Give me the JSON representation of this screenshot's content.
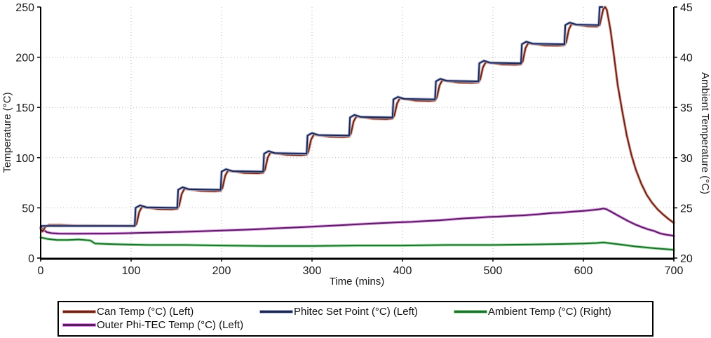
{
  "chart_data": {
    "type": "line",
    "title": "",
    "xlabel": "Time (mins)",
    "ylabel_left": "Temperature (°C)",
    "ylabel_right": "Ambient Temperature (°C)",
    "xlim": [
      0,
      700
    ],
    "ylim_left": [
      0,
      250
    ],
    "ylim_right": [
      20,
      45
    ],
    "x_ticks": [
      0,
      100,
      200,
      300,
      400,
      500,
      600,
      700
    ],
    "y_ticks_left": [
      0,
      50,
      100,
      150,
      200,
      250
    ],
    "y_ticks_right": [
      20,
      25,
      30,
      35,
      40,
      45
    ],
    "grid": true,
    "legend_position": "bottom",
    "legend_order": [
      0,
      1,
      3,
      2
    ],
    "series": [
      {
        "name": "Can Temp (°C) (Left)",
        "axis": "left",
        "color": "#6B2318",
        "halo": "#DFA193",
        "points": [
          [
            0,
            29
          ],
          [
            2,
            26.5
          ],
          [
            5,
            31
          ],
          [
            9,
            33
          ],
          [
            22,
            33
          ],
          [
            40,
            32.3
          ],
          [
            104,
            32
          ],
          [
            106,
            34
          ],
          [
            109,
            46
          ],
          [
            112,
            51
          ],
          [
            118,
            50.3
          ],
          [
            130,
            48.8
          ],
          [
            145,
            48.5
          ],
          [
            151,
            49
          ],
          [
            153,
            52
          ],
          [
            156,
            64
          ],
          [
            159,
            69
          ],
          [
            165,
            68.3
          ],
          [
            177,
            66.8
          ],
          [
            192,
            66.5
          ],
          [
            199,
            67
          ],
          [
            201,
            70
          ],
          [
            204,
            82
          ],
          [
            207,
            87
          ],
          [
            213,
            86.3
          ],
          [
            225,
            84.8
          ],
          [
            240,
            84.5
          ],
          [
            246,
            85
          ],
          [
            248,
            88
          ],
          [
            251,
            100
          ],
          [
            254,
            105
          ],
          [
            260,
            104.3
          ],
          [
            272,
            102.8
          ],
          [
            287,
            102.5
          ],
          [
            294,
            103
          ],
          [
            296,
            106
          ],
          [
            299,
            118
          ],
          [
            302,
            123
          ],
          [
            308,
            122.3
          ],
          [
            320,
            120.8
          ],
          [
            335,
            120.5
          ],
          [
            341,
            121
          ],
          [
            343,
            124
          ],
          [
            346,
            136
          ],
          [
            349,
            141
          ],
          [
            355,
            140.3
          ],
          [
            367,
            138.8
          ],
          [
            382,
            138.5
          ],
          [
            389,
            139
          ],
          [
            391,
            142
          ],
          [
            394,
            154
          ],
          [
            397,
            159
          ],
          [
            403,
            158.3
          ],
          [
            415,
            156.8
          ],
          [
            430,
            156.5
          ],
          [
            436,
            157
          ],
          [
            438,
            160
          ],
          [
            441,
            172
          ],
          [
            444,
            177
          ],
          [
            450,
            176.3
          ],
          [
            462,
            174.8
          ],
          [
            477,
            174.5
          ],
          [
            484,
            175
          ],
          [
            486,
            178
          ],
          [
            489,
            190
          ],
          [
            492,
            195
          ],
          [
            498,
            194.3
          ],
          [
            510,
            192.8
          ],
          [
            525,
            192.5
          ],
          [
            531,
            193
          ],
          [
            533,
            196
          ],
          [
            536,
            209
          ],
          [
            539,
            214
          ],
          [
            545,
            213.3
          ],
          [
            557,
            211.8
          ],
          [
            572,
            211.5
          ],
          [
            579,
            212
          ],
          [
            581,
            215
          ],
          [
            584,
            228
          ],
          [
            587,
            233
          ],
          [
            593,
            232.3
          ],
          [
            605,
            230.8
          ],
          [
            615,
            230.5
          ],
          [
            618,
            232
          ],
          [
            620,
            240
          ],
          [
            622,
            248
          ],
          [
            624,
            250
          ],
          [
            626,
            247
          ],
          [
            630,
            227
          ],
          [
            634,
            200
          ],
          [
            638,
            172
          ],
          [
            643,
            146
          ],
          [
            648,
            122
          ],
          [
            653,
            103
          ],
          [
            658,
            88
          ],
          [
            664,
            74
          ],
          [
            670,
            63
          ],
          [
            676,
            55
          ],
          [
            682,
            48.5
          ],
          [
            688,
            43.5
          ],
          [
            694,
            39
          ],
          [
            700,
            35
          ]
        ]
      },
      {
        "name": "Phitec Set Point (°C) (Left)",
        "axis": "left",
        "color": "#1C2750",
        "halo": "#A3ADD6",
        "points": [
          [
            0,
            30
          ],
          [
            1.5,
            32
          ],
          [
            104,
            32
          ],
          [
            105,
            50
          ],
          [
            110,
            52.5
          ],
          [
            117,
            50.5
          ],
          [
            151,
            50
          ],
          [
            152,
            68
          ],
          [
            157,
            70.5
          ],
          [
            164,
            68.5
          ],
          [
            199,
            68
          ],
          [
            200,
            86
          ],
          [
            205,
            88.5
          ],
          [
            212,
            86.5
          ],
          [
            246,
            86
          ],
          [
            247,
            104
          ],
          [
            252,
            106.5
          ],
          [
            259,
            104.5
          ],
          [
            294,
            104
          ],
          [
            295,
            122
          ],
          [
            300,
            124.5
          ],
          [
            307,
            122.5
          ],
          [
            341,
            122
          ],
          [
            342,
            140
          ],
          [
            347,
            142.5
          ],
          [
            354,
            140.5
          ],
          [
            389,
            140
          ],
          [
            390,
            158
          ],
          [
            395,
            160.5
          ],
          [
            402,
            158.5
          ],
          [
            436,
            158
          ],
          [
            437,
            176
          ],
          [
            442,
            178.5
          ],
          [
            449,
            176.5
          ],
          [
            484,
            176
          ],
          [
            485,
            194
          ],
          [
            490,
            196.5
          ],
          [
            497,
            194.5
          ],
          [
            531,
            194
          ],
          [
            532,
            213
          ],
          [
            537,
            215.5
          ],
          [
            544,
            213.5
          ],
          [
            579,
            213
          ],
          [
            580,
            232
          ],
          [
            585,
            234.5
          ],
          [
            592,
            232.5
          ],
          [
            617,
            232
          ],
          [
            618,
            250
          ],
          [
            621,
            250
          ]
        ]
      },
      {
        "name": "Outer Phi-TEC Temp (°C) (Left)",
        "axis": "left",
        "color": "#5B1C64",
        "halo": "#D88FDF",
        "points": [
          [
            0,
            30.5
          ],
          [
            3,
            28
          ],
          [
            7,
            25.8
          ],
          [
            12,
            24.8
          ],
          [
            20,
            24.4
          ],
          [
            40,
            24.3
          ],
          [
            70,
            24.4
          ],
          [
            95,
            24.7
          ],
          [
            105,
            25
          ],
          [
            125,
            25.4
          ],
          [
            150,
            26
          ],
          [
            175,
            26.6
          ],
          [
            200,
            27.4
          ],
          [
            225,
            28.2
          ],
          [
            250,
            29.2
          ],
          [
            275,
            30.2
          ],
          [
            300,
            31.2
          ],
          [
            325,
            32.4
          ],
          [
            350,
            33.6
          ],
          [
            375,
            34.8
          ],
          [
            395,
            35.6
          ],
          [
            410,
            36
          ],
          [
            425,
            36.8
          ],
          [
            440,
            37.6
          ],
          [
            455,
            38.6
          ],
          [
            470,
            39.6
          ],
          [
            480,
            40.1
          ],
          [
            495,
            40.9
          ],
          [
            505,
            41.2
          ],
          [
            520,
            42
          ],
          [
            535,
            42.6
          ],
          [
            550,
            43.6
          ],
          [
            565,
            44.8
          ],
          [
            575,
            45.2
          ],
          [
            590,
            46.4
          ],
          [
            600,
            47
          ],
          [
            612,
            48
          ],
          [
            618,
            48.6
          ],
          [
            622,
            49.4
          ],
          [
            625,
            48.8
          ],
          [
            630,
            46.5
          ],
          [
            636,
            43.5
          ],
          [
            643,
            40
          ],
          [
            650,
            36.6
          ],
          [
            657,
            33.6
          ],
          [
            664,
            31
          ],
          [
            671,
            28.8
          ],
          [
            678,
            27
          ],
          [
            685,
            24.5
          ],
          [
            692,
            23.2
          ],
          [
            700,
            22.2
          ]
        ]
      },
      {
        "name": "Ambient Temp (°C) (Right)",
        "axis": "right",
        "color": "#1F7030",
        "halo": "#93DC98",
        "points": [
          [
            0,
            22.05
          ],
          [
            8,
            21.9
          ],
          [
            18,
            21.8
          ],
          [
            30,
            21.8
          ],
          [
            42,
            21.85
          ],
          [
            55,
            21.75
          ],
          [
            60,
            21.45
          ],
          [
            75,
            21.4
          ],
          [
            95,
            21.35
          ],
          [
            120,
            21.3
          ],
          [
            160,
            21.3
          ],
          [
            200,
            21.25
          ],
          [
            250,
            21.2
          ],
          [
            300,
            21.2
          ],
          [
            350,
            21.25
          ],
          [
            400,
            21.25
          ],
          [
            450,
            21.3
          ],
          [
            500,
            21.3
          ],
          [
            540,
            21.35
          ],
          [
            575,
            21.4
          ],
          [
            600,
            21.45
          ],
          [
            615,
            21.5
          ],
          [
            622,
            21.55
          ],
          [
            632,
            21.45
          ],
          [
            645,
            21.3
          ],
          [
            658,
            21.15
          ],
          [
            670,
            21.05
          ],
          [
            682,
            20.95
          ],
          [
            692,
            20.88
          ],
          [
            700,
            20.82
          ]
        ]
      }
    ]
  },
  "layout_colors": {
    "grid": "#b5b5b5",
    "axis": "#000000",
    "background": "#ffffff"
  }
}
